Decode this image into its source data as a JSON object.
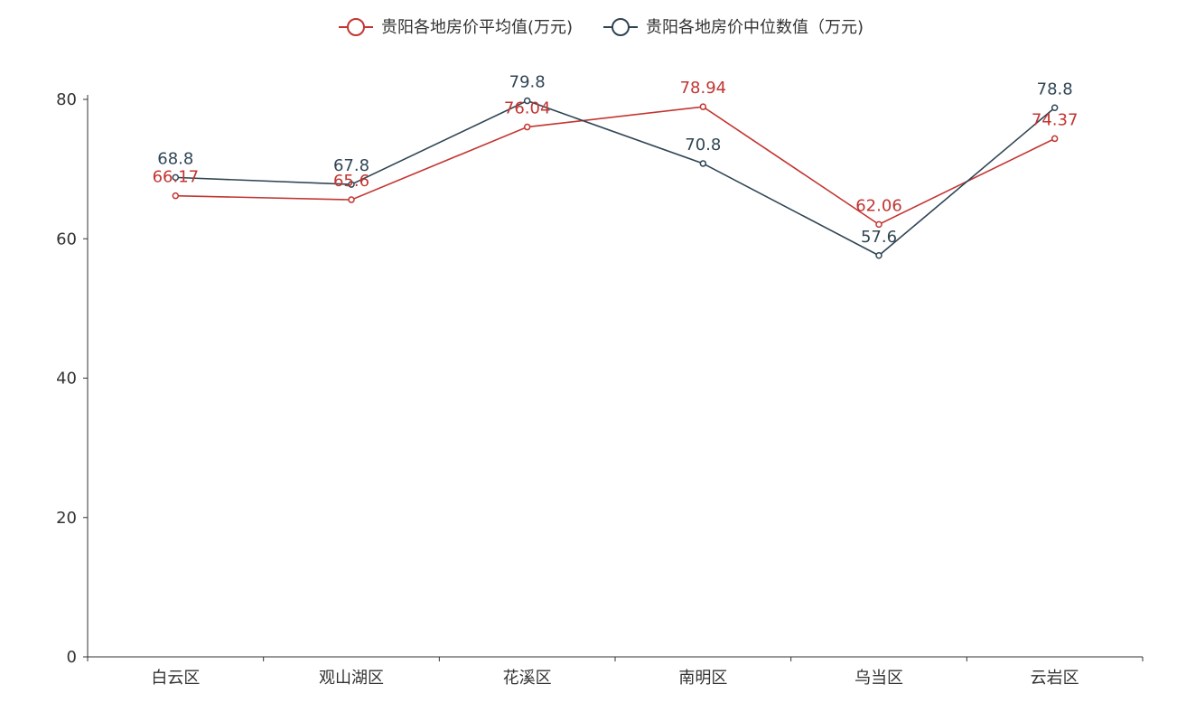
{
  "chart_data": {
    "type": "line",
    "categories": [
      "白云区",
      "观山湖区",
      "花溪区",
      "南明区",
      "乌当区",
      "云岩区"
    ],
    "series": [
      {
        "name": "贵阳各地房价平均值(万元)",
        "values": [
          66.17,
          65.6,
          76.04,
          78.94,
          62.06,
          74.37
        ],
        "labels": [
          "66.17",
          "65.6",
          "76.04",
          "78.94",
          "62.06",
          "74.37"
        ],
        "color": "#c23531"
      },
      {
        "name": "贵阳各地房价中位数值（万元)",
        "values": [
          68.8,
          67.8,
          79.8,
          70.8,
          57.6,
          78.8
        ],
        "labels": [
          "68.8",
          "67.8",
          "79.8",
          "70.8",
          "57.6",
          "78.8"
        ],
        "color": "#2f4554"
      }
    ],
    "ylim": [
      0,
      80
    ],
    "yticks": [
      0,
      20,
      40,
      60,
      80
    ],
    "ytick_labels": [
      "0",
      "20",
      "40",
      "60",
      "80"
    ],
    "grid": false,
    "legend": "top-center"
  }
}
